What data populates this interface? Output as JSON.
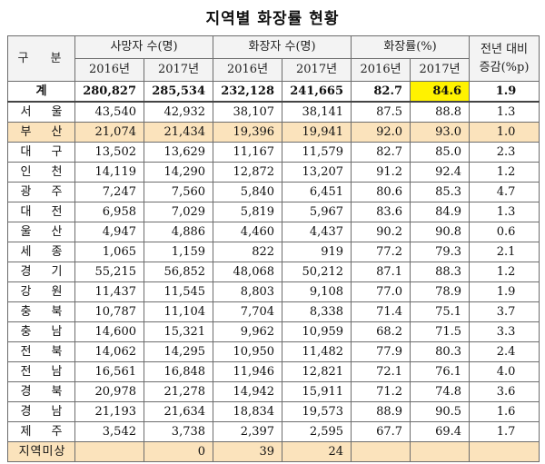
{
  "title": "지역별 화장률 현황",
  "header": {
    "gubun": "구 분",
    "deaths": "사망자 수(명)",
    "cremations": "화장자 수(명)",
    "rate": "화장률(%)",
    "diff_line1": "전년 대비",
    "diff_line2": "증감(%p)",
    "y2016": "2016년",
    "y2017": "2017년"
  },
  "rows": [
    {
      "region": "계",
      "d2016": "280,827",
      "d2017": "285,534",
      "c2016": "232,128",
      "c2017": "241,665",
      "r2016": "82.7",
      "r2017": "84.6",
      "diff": "1.9"
    },
    {
      "region": "서 울",
      "d2016": "43,540",
      "d2017": "42,932",
      "c2016": "38,107",
      "c2017": "38,141",
      "r2016": "87.5",
      "r2017": "88.8",
      "diff": "1.3"
    },
    {
      "region": "부 산",
      "d2016": "21,074",
      "d2017": "21,434",
      "c2016": "19,396",
      "c2017": "19,941",
      "r2016": "92.0",
      "r2017": "93.0",
      "diff": "1.0"
    },
    {
      "region": "대 구",
      "d2016": "13,502",
      "d2017": "13,629",
      "c2016": "11,167",
      "c2017": "11,579",
      "r2016": "82.7",
      "r2017": "85.0",
      "diff": "2.3"
    },
    {
      "region": "인 천",
      "d2016": "14,119",
      "d2017": "14,290",
      "c2016": "12,872",
      "c2017": "13,207",
      "r2016": "91.2",
      "r2017": "92.4",
      "diff": "1.2"
    },
    {
      "region": "광 주",
      "d2016": "7,247",
      "d2017": "7,560",
      "c2016": "5,840",
      "c2017": "6,451",
      "r2016": "80.6",
      "r2017": "85.3",
      "diff": "4.7"
    },
    {
      "region": "대 전",
      "d2016": "6,958",
      "d2017": "7,029",
      "c2016": "5,819",
      "c2017": "5,967",
      "r2016": "83.6",
      "r2017": "84.9",
      "diff": "1.3"
    },
    {
      "region": "울 산",
      "d2016": "4,947",
      "d2017": "4,886",
      "c2016": "4,460",
      "c2017": "4,437",
      "r2016": "90.2",
      "r2017": "90.8",
      "diff": "0.6"
    },
    {
      "region": "세 종",
      "d2016": "1,065",
      "d2017": "1,159",
      "c2016": "822",
      "c2017": "919",
      "r2016": "77.2",
      "r2017": "79.3",
      "diff": "2.1"
    },
    {
      "region": "경 기",
      "d2016": "55,215",
      "d2017": "56,852",
      "c2016": "48,068",
      "c2017": "50,212",
      "r2016": "87.1",
      "r2017": "88.3",
      "diff": "1.2"
    },
    {
      "region": "강 원",
      "d2016": "11,437",
      "d2017": "11,545",
      "c2016": "8,803",
      "c2017": "9,108",
      "r2016": "77.0",
      "r2017": "78.9",
      "diff": "1.9"
    },
    {
      "region": "충 북",
      "d2016": "10,787",
      "d2017": "11,104",
      "c2016": "7,704",
      "c2017": "8,338",
      "r2016": "71.4",
      "r2017": "75.1",
      "diff": "3.7"
    },
    {
      "region": "충 남",
      "d2016": "14,600",
      "d2017": "15,321",
      "c2016": "9,962",
      "c2017": "10,959",
      "r2016": "68.2",
      "r2017": "71.5",
      "diff": "3.3"
    },
    {
      "region": "전 북",
      "d2016": "14,062",
      "d2017": "14,295",
      "c2016": "10,950",
      "c2017": "11,482",
      "r2016": "77.9",
      "r2017": "80.3",
      "diff": "2.4"
    },
    {
      "region": "전 남",
      "d2016": "16,561",
      "d2017": "16,848",
      "c2016": "11,946",
      "c2017": "12,821",
      "r2016": "72.1",
      "r2017": "76.1",
      "diff": "4.0"
    },
    {
      "region": "경 북",
      "d2016": "20,978",
      "d2017": "21,278",
      "c2016": "14,942",
      "c2017": "15,911",
      "r2016": "71.2",
      "r2017": "74.8",
      "diff": "3.6"
    },
    {
      "region": "경 남",
      "d2016": "21,193",
      "d2017": "21,634",
      "c2016": "18,834",
      "c2017": "19,573",
      "r2016": "88.9",
      "r2017": "90.5",
      "diff": "1.6"
    },
    {
      "region": "제 주",
      "d2016": "3,542",
      "d2017": "3,738",
      "c2016": "2,397",
      "c2017": "2,595",
      "r2016": "67.7",
      "r2017": "69.4",
      "diff": "1.7"
    },
    {
      "region": "지역미상",
      "d2016": "",
      "d2017": "0",
      "c2016": "39",
      "c2017": "24",
      "r2016": "",
      "r2017": "",
      "diff": ""
    }
  ],
  "colors": {
    "highlight_row": "#fbe3bc",
    "highlight_cell": "#fff200",
    "header_bg": "#f3f3f3"
  }
}
